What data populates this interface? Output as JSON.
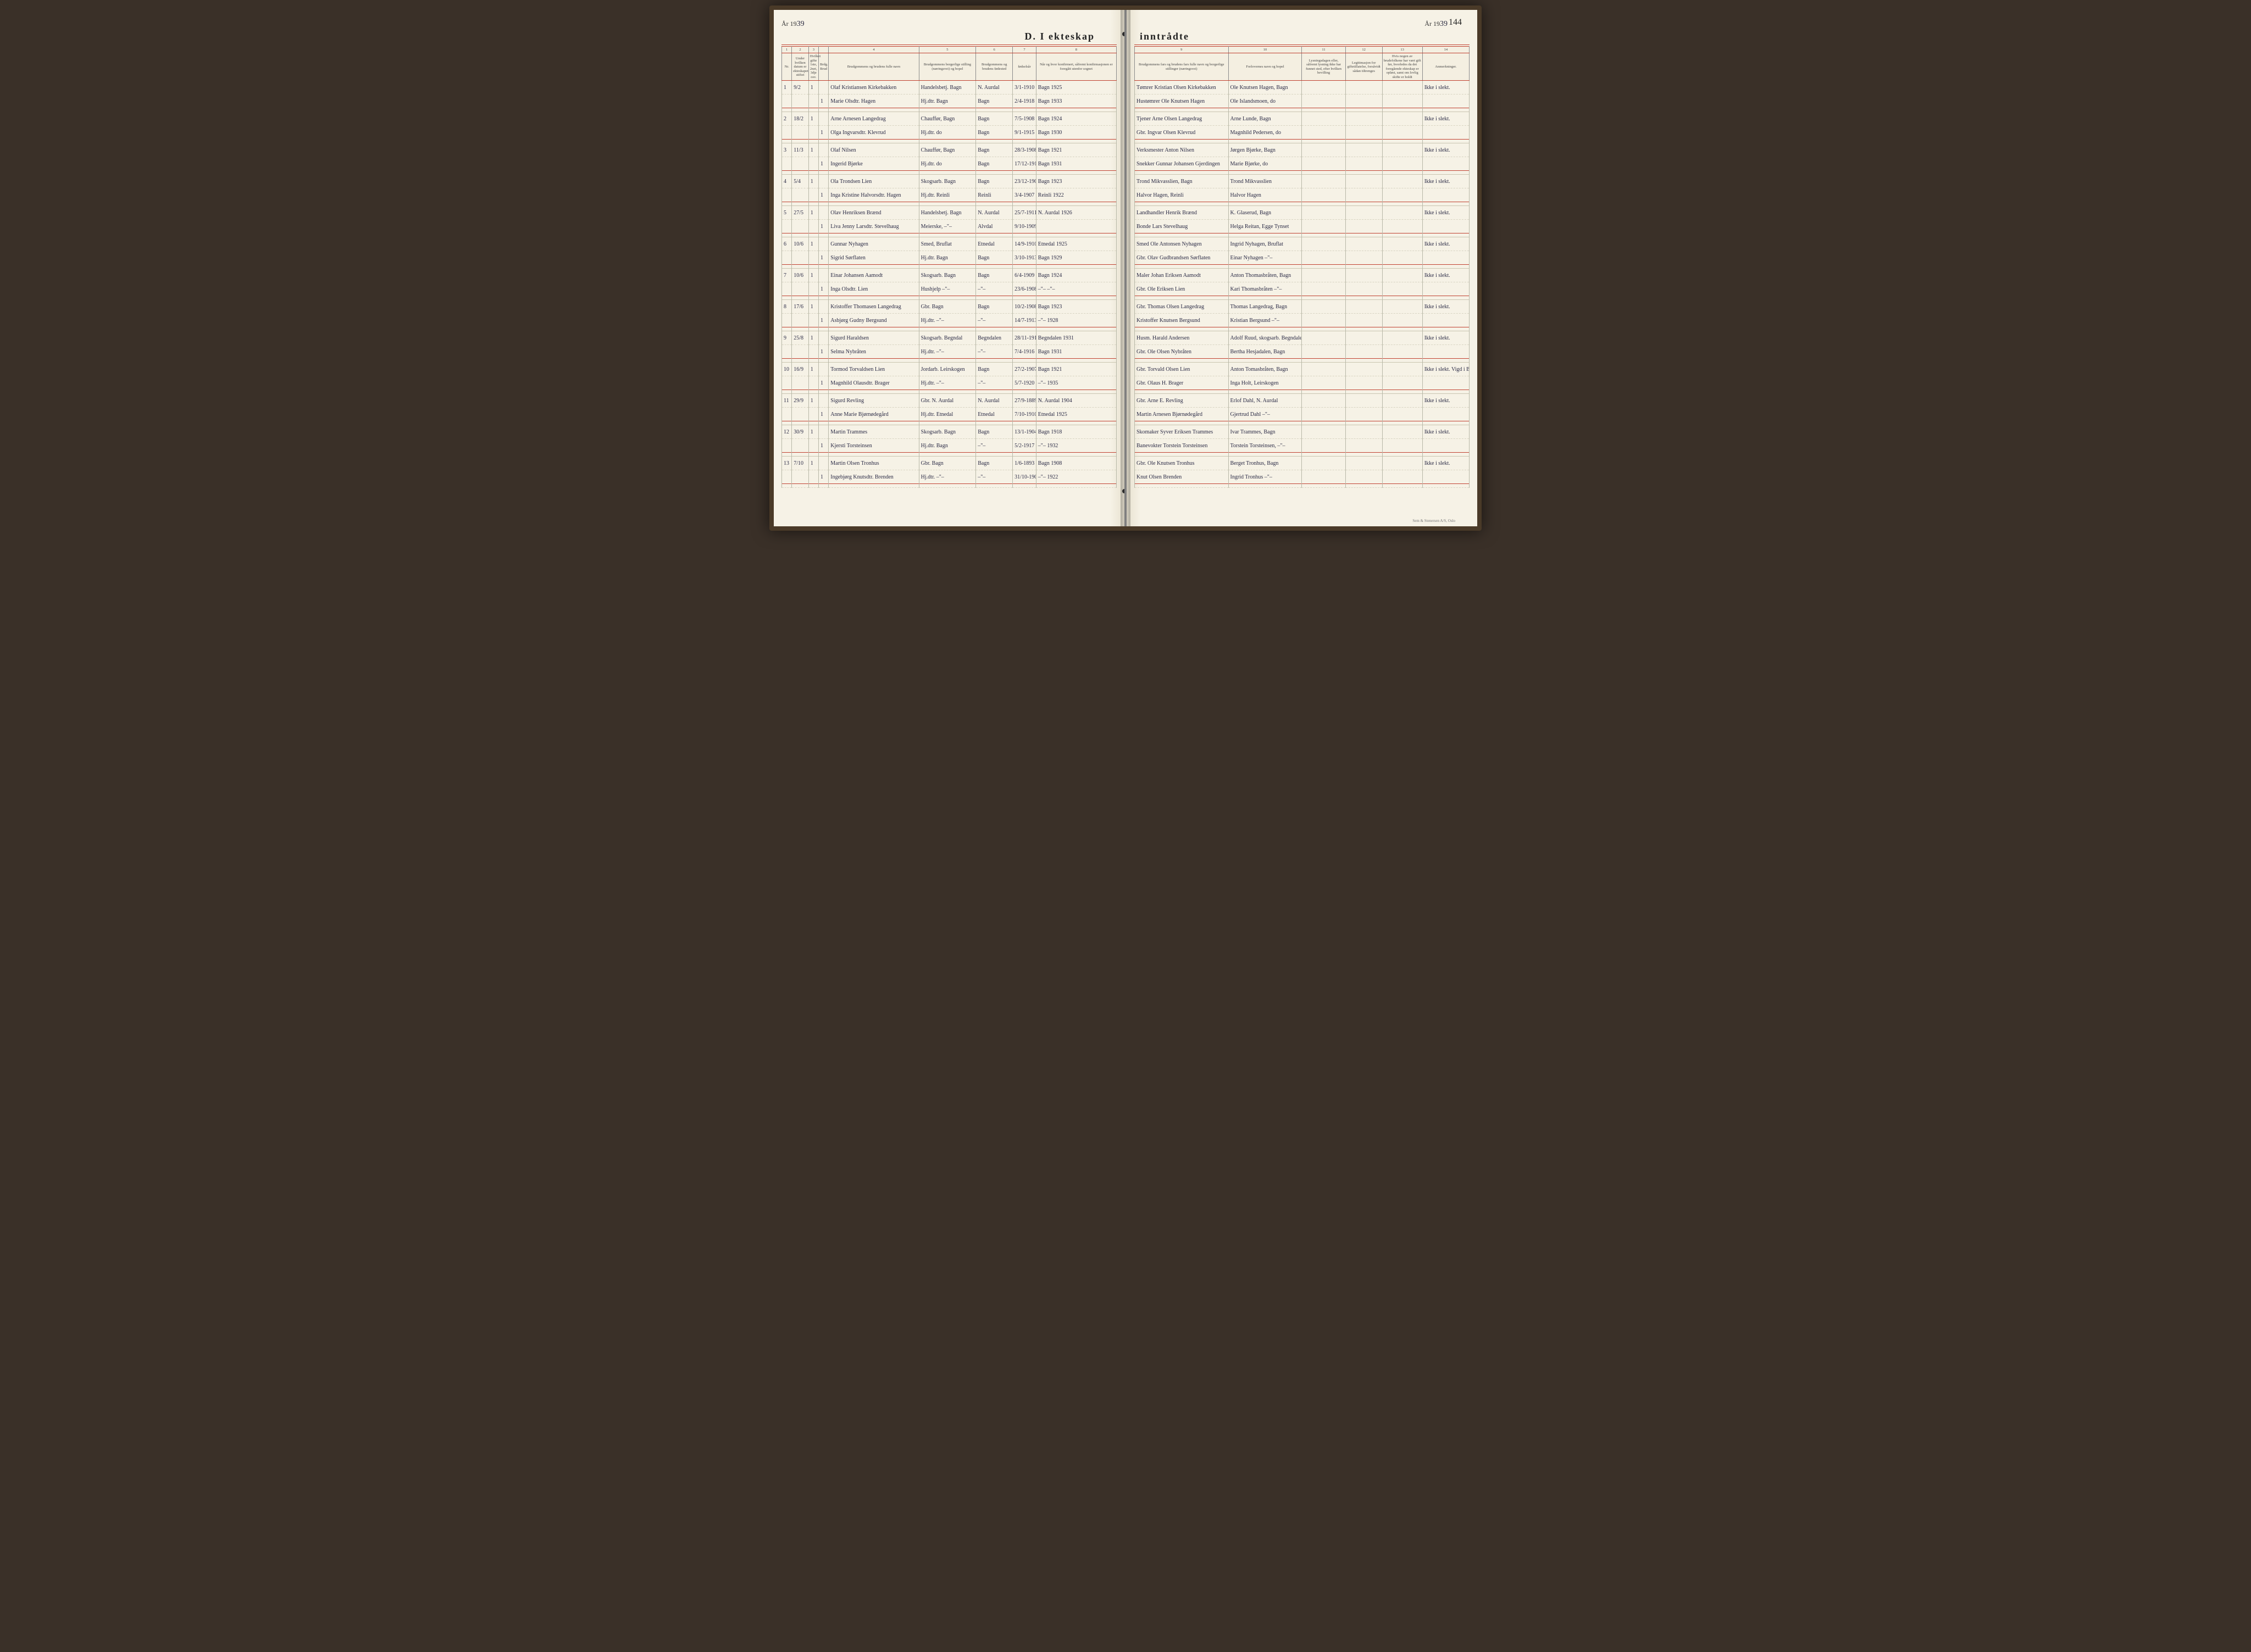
{
  "page_number": "144",
  "year_prefix": "År 19",
  "year_suffix_left": "39",
  "year_suffix_right": "39",
  "title_left": "D.  I ekteskap",
  "title_right": "inntrådte",
  "footer": "Sem & Stenersen A/S, Oslo",
  "colors": {
    "paper": "#f6f2e6",
    "red_rule": "#c04030",
    "ink": "#2a2a45",
    "grid": "#8a8a8a"
  },
  "left_colnums": [
    "1",
    "2",
    "3",
    "",
    "4",
    "5",
    "6",
    "7",
    "8"
  ],
  "right_colnums": [
    "9",
    "10",
    "11",
    "12",
    "13",
    "14"
  ],
  "left_headers": [
    "Nr.",
    "Under hvilken datum er ekteskapet stiftet",
    "Hvilket gifte 1ste, 2net, 3dje osv.",
    "Brdg.  Brud",
    "Brudgommens og brudens fulle navn",
    "Brudgommens borgerlige stilling (næringsvei) og bopel",
    "Brudgommens og brudens fødested",
    "fødselsår",
    "Når og hvor konfirmert, såfremt konfirmasjonen er foregått utenfor sognet"
  ],
  "right_headers": [
    "Brudgommens fars og brudens fars fulle navn og borgerlige stillinger (næringsvei)",
    "Forlovernes navn og bopel",
    "Lysningsdagen eller, såfremt lysning ikke har funnet sted, efter hvilken bevilling",
    "Legitimasjon for giftetillatelse, forsåvidt sådan tiltrenges",
    "Hvis nogen av brudefolkene har vært gift før, hvorledes da det foregående ekteskap er opløst, samt om lovlig skifte er holdt",
    "Anmerkninger."
  ],
  "left_col_widths": [
    "3%",
    "5%",
    "3%",
    "3%",
    "27%",
    "17%",
    "11%",
    "7%",
    "24%"
  ],
  "right_col_widths": [
    "28%",
    "22%",
    "13%",
    "11%",
    "12%",
    "14%"
  ],
  "entries": [
    {
      "nr": "1",
      "date": "9/2",
      "g1": "1",
      "g2": "1",
      "groom": "Olaf Kristiansen Kirkebakken",
      "groom_pos": "Handelsbetj. Bagn",
      "groom_born": "N. Aurdal",
      "groom_bdate": "3/1-1910",
      "groom_conf": "Bagn 1925",
      "bride": "Marie Olsdtr. Hagen",
      "bride_pos": "Hj.dtr. Bagn",
      "bride_born": "Bagn",
      "bride_bdate": "2/4-1918",
      "bride_conf": "Bagn 1933",
      "f_groom": "Tømrer Kristian Olsen Kirkebakken",
      "f_bride": "Hustømrer Ole Knutsen Hagen",
      "w1": "Ole Knutsen Hagen, Bagn",
      "w2": "Ole Islandsmoen, do",
      "note": "Ikke i slekt."
    },
    {
      "nr": "2",
      "date": "18/2",
      "g1": "1",
      "g2": "1",
      "groom": "Arne Arnesen Langedrag",
      "groom_pos": "Chauffør, Bagn",
      "groom_born": "Bagn",
      "groom_bdate": "7/5-1908",
      "groom_conf": "Bagn 1924",
      "bride": "Olga Ingvarsdtr. Klevrud",
      "bride_pos": "Hj.dtr.  do",
      "bride_born": "Bagn",
      "bride_bdate": "9/1-1915",
      "bride_conf": "Bagn 1930",
      "f_groom": "Tjener Arne Olsen Langedrag",
      "f_bride": "Gbr. Ingvar Olsen Klevrud",
      "w1": "Arne Lunde, Bagn",
      "w2": "Magnhild Pedersen, do",
      "note": "Ikke i slekt."
    },
    {
      "nr": "3",
      "date": "11/3",
      "g1": "1",
      "g2": "1",
      "groom": "Olaf Nilsen",
      "groom_pos": "Chauffør, Bagn",
      "groom_born": "Bagn",
      "groom_bdate": "28/3-1908",
      "groom_conf": "Bagn 1921",
      "bride": "Ingerid Bjørke",
      "bride_pos": "Hj.dtr.  do",
      "bride_born": "Bagn",
      "bride_bdate": "17/12-1916",
      "bride_conf": "Bagn 1931",
      "f_groom": "Verksmester Anton Nilsen",
      "f_bride": "Snekker Gunnar Johansen Gjerdingen",
      "w1": "Jørgen Bjørke, Bagn",
      "w2": "Marie Bjørke, do",
      "note": "Ikke i slekt."
    },
    {
      "nr": "4",
      "date": "5/4",
      "g1": "1",
      "g2": "1",
      "groom": "Ola Trondsen Lien",
      "groom_pos": "Skogsarb. Bagn",
      "groom_born": "Bagn",
      "groom_bdate": "23/12-1908",
      "groom_conf": "Bagn 1923",
      "bride": "Inga Kristine Halvorsdtr. Hagen",
      "bride_pos": "Hj.dtr. Reinli",
      "bride_born": "Reinli",
      "bride_bdate": "3/4-1907",
      "bride_conf": "Reinli 1922",
      "f_groom": "Trond Mikvasslien, Bagn",
      "f_bride": "Halvor Hagen, Reinli",
      "w1": "Trond Mikvasslien",
      "w2": "Halvor Hagen",
      "note": "Ikke i slekt."
    },
    {
      "nr": "5",
      "date": "27/5",
      "g1": "1",
      "g2": "1",
      "groom": "Olav Henriksen Brænd",
      "groom_pos": "Handelsbetj. Bagn",
      "groom_born": "N. Aurdal",
      "groom_bdate": "25/7-1911",
      "groom_conf": "N. Aurdal 1926",
      "bride": "Liva Jenny Larsdtr. Stevelhaug",
      "bride_pos": "Meierske,  –\"–",
      "bride_born": "Alvdal",
      "bride_bdate": "9/10-1909",
      "bride_conf": "",
      "f_groom": "Landhandler Henrik Brænd",
      "f_bride": "Bonde Lars Stevelhaug",
      "w1": "K. Glaserud, Bagn",
      "w2": "Helga Reitan, Egge Tynset",
      "note": "Ikke i slekt."
    },
    {
      "nr": "6",
      "date": "10/6",
      "g1": "1",
      "g2": "1",
      "groom": "Gunnar Nyhagen",
      "groom_pos": "Smed, Bruflat",
      "groom_born": "Etnedal",
      "groom_bdate": "14/9-1910",
      "groom_conf": "Etnedal 1925",
      "bride": "Sigrid Sørflaten",
      "bride_pos": "Hj.dtr. Bagn",
      "bride_born": "Bagn",
      "bride_bdate": "3/10-1913",
      "bride_conf": "Bagn 1929",
      "f_groom": "Smed Ole Antonsen Nyhagen",
      "f_bride": "Gbr. Olav Gudbrandsen Sørflaten",
      "w1": "Ingrid Nyhagen, Bruflat",
      "w2": "Einar Nyhagen  –\"–",
      "note": "Ikke i slekt."
    },
    {
      "nr": "7",
      "date": "10/6",
      "g1": "1",
      "g2": "1",
      "groom": "Einar Johansen Aamodt",
      "groom_pos": "Skogsarb. Bagn",
      "groom_born": "Bagn",
      "groom_bdate": "6/4-1909",
      "groom_conf": "Bagn 1924",
      "bride": "Inga Olsdtr. Lien",
      "bride_pos": "Hushjelp  –\"–",
      "bride_born": "–\"–",
      "bride_bdate": "23/6-1908",
      "bride_conf": "–\"–   –\"–",
      "f_groom": "Maler Johan Eriksen Aamodt",
      "f_bride": "Gbr. Ole Eriksen Lien",
      "w1": "Anton Thomasbråten, Bagn",
      "w2": "Kari Thomasbråten –\"–",
      "note": "Ikke i slekt."
    },
    {
      "nr": "8",
      "date": "17/6",
      "g1": "1",
      "g2": "1",
      "groom": "Kristoffer Thomasen Langedrag",
      "groom_pos": "Gbr. Bagn",
      "groom_born": "Bagn",
      "groom_bdate": "10/2-1908",
      "groom_conf": "Bagn 1923",
      "bride": "Asbjørg Gudny Bergsund",
      "bride_pos": "Hj.dtr.  –\"–",
      "bride_born": "–\"–",
      "bride_bdate": "14/7-1913",
      "bride_conf": "–\"–  1928",
      "f_groom": "Gbr. Thomas Olsen Langedrag",
      "f_bride": "Kristoffer Knutsen Bergsund",
      "w1": "Thomas Langedrag, Bagn",
      "w2": "Kristian Bergsund –\"–",
      "note": "Ikke i slekt."
    },
    {
      "nr": "9",
      "date": "25/8",
      "g1": "1",
      "g2": "1",
      "groom": "Sigurd Haraldsen",
      "groom_pos": "Skogsarb. Begndal",
      "groom_born": "Begndalen",
      "groom_bdate": "28/11-1916",
      "groom_conf": "Begndalen 1931",
      "bride": "Selma Nybråten",
      "bride_pos": "Hj.dtr.  –\"–",
      "bride_born": "–\"–",
      "bride_bdate": "7/4-1916",
      "bride_conf": "Bagn 1931",
      "f_groom": "Husm. Harald Andersen",
      "f_bride": "Gbr. Ole Olsen Nybråten",
      "w1": "Adolf Ruud, skogsarb. Begndalen",
      "w2": "Bertha Hesjadalen, Bagn",
      "note": "Ikke i slekt."
    },
    {
      "nr": "10",
      "date": "16/9",
      "g1": "1",
      "g2": "1",
      "groom": "Tormod Torvaldsen Lien",
      "groom_pos": "Jordarb. Leirskogen",
      "groom_born": "Bagn",
      "groom_bdate": "27/2-1907",
      "groom_conf": "Bagn 1921",
      "bride": "Magnhild Olausdtr. Brager",
      "bride_pos": "Hj.dtr.  –\"–",
      "bride_born": "–\"–",
      "bride_bdate": "5/7-1920",
      "bride_conf": "–\"–  1935",
      "f_groom": "Gbr. Torvald Olsen Lien",
      "f_bride": "Gbr. Olaus H. Brager",
      "w1": "Anton Tomasbråten, Bagn",
      "w2": "Inga Holt, Leirskogen",
      "note": "Ikke i slekt.  Vigd i Bagn kirke"
    },
    {
      "nr": "11",
      "date": "29/9",
      "g1": "1",
      "g2": "1",
      "groom": "Sigurd Revling",
      "groom_pos": "Gbr. N. Aurdal",
      "groom_born": "N. Aurdal",
      "groom_bdate": "27/9-1889",
      "groom_conf": "N. Aurdal 1904",
      "bride": "Anne Marie Bjørnødegård",
      "bride_pos": "Hj.dtr. Etnedal",
      "bride_born": "Etnedal",
      "bride_bdate": "7/10-1910",
      "bride_conf": "Etnedal 1925",
      "f_groom": "Gbr. Arne E. Revling",
      "f_bride": "Martin Arnesen Bjørnødegård",
      "w1": "Erlof Dahl, N. Aurdal",
      "w2": "Gjertrud Dahl  –\"–",
      "note": "Ikke i slekt."
    },
    {
      "nr": "12",
      "date": "30/9",
      "g1": "1",
      "g2": "1",
      "groom": "Martin Trammes",
      "groom_pos": "Skogsarb. Bagn",
      "groom_born": "Bagn",
      "groom_bdate": "13/1-1904",
      "groom_conf": "Bagn 1918",
      "bride": "Kjersti Torsteinsen",
      "bride_pos": "Hj.dtr. Bagn",
      "bride_born": "–\"–",
      "bride_bdate": "5/2-1917",
      "bride_conf": "–\"–  1932",
      "f_groom": "Skomaker Syver Eriksen Trammes",
      "f_bride": "Banevokter Torstein Torsteinsen",
      "w1": "Ivar Trammes, Bagn",
      "w2": "Torstein Torsteinsen, –\"–",
      "note": "Ikke i slekt."
    },
    {
      "nr": "13",
      "date": "7/10",
      "g1": "1",
      "g2": "1",
      "groom": "Martin Olsen Tronhus",
      "groom_pos": "Gbr. Bagn",
      "groom_born": "Bagn",
      "groom_bdate": "1/6-1893",
      "groom_conf": "Bagn 1908",
      "bride": "Ingebjørg Knutsdtr. Brenden",
      "bride_pos": "Hj.dtr. –\"–",
      "bride_born": "–\"–",
      "bride_bdate": "31/10-1907",
      "bride_conf": "–\"–  1922",
      "f_groom": "Gbr. Ole Knutsen Tronhus",
      "f_bride": "Knut Olsen Brenden",
      "w1": "Berget Tronhus, Bagn",
      "w2": "Ingrid Tronhus –\"–",
      "note": "Ikke i slekt."
    }
  ]
}
